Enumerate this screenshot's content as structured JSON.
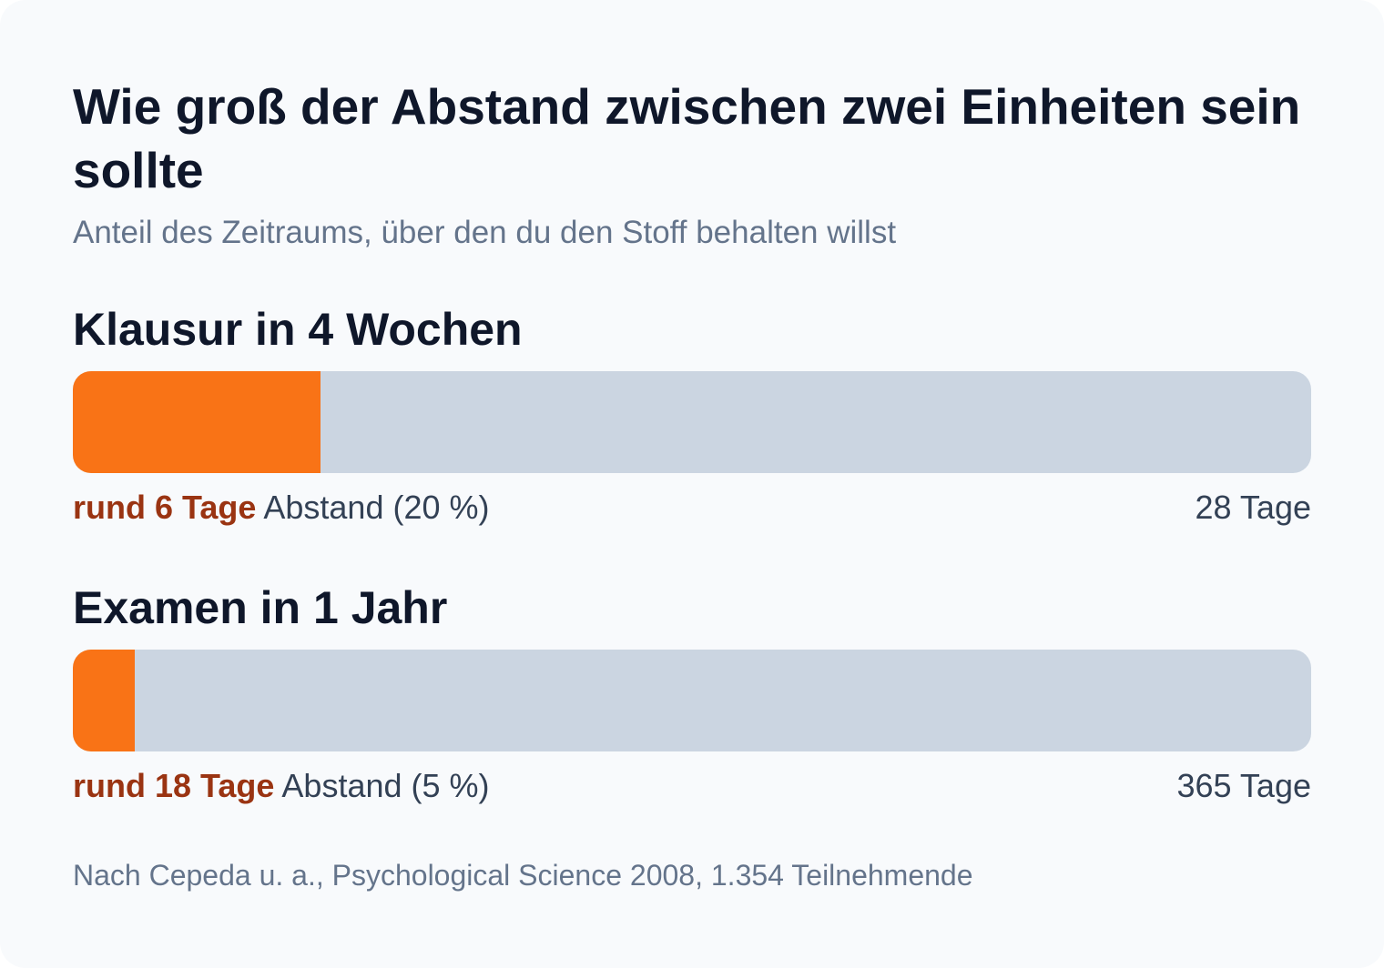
{
  "title": "Wie groß der Abstand zwischen zwei Einheiten sein sollte",
  "subtitle": "Anteil des Zeitraums, über den du den Stoff behalten willst",
  "colors": {
    "background": "#f8fafc",
    "bar_fill": "#f97316",
    "bar_track": "#cbd5e1",
    "highlight_text": "#9a3412"
  },
  "chart_data": {
    "type": "bar",
    "title": "Wie groß der Abstand zwischen zwei Einheiten sein sollte",
    "subtitle": "Anteil des Zeitraums, über den du den Stoff behalten willst",
    "categories": [
      "Klausur in 4 Wochen",
      "Examen in 1 Jahr"
    ],
    "values": [
      20,
      5
    ],
    "unit": "%",
    "bars": [
      {
        "label": "Klausur in 4 Wochen",
        "percent": 20,
        "gap_text": "rund 6 Tage",
        "rest_text": "Abstand (20 %)",
        "total_text": "28 Tage"
      },
      {
        "label": "Examen in 1 Jahr",
        "percent": 5,
        "gap_text": "rund 18 Tage",
        "rest_text": "Abstand (5 %)",
        "total_text": "365 Tage"
      }
    ]
  },
  "source": "Nach Cepeda u. a., Psychological Science 2008, 1.354 Teilnehmende"
}
